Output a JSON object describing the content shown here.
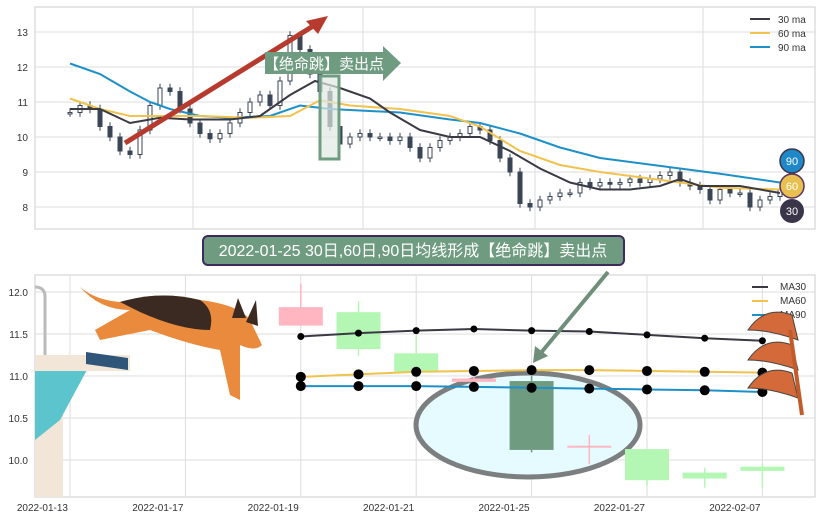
{
  "colors": {
    "ma30": "#3a3a44",
    "ma60": "#f0c24e",
    "ma90": "#1e90c8",
    "up": "#ffb6c1",
    "down": "#b4f7b4",
    "signal": "#6f9c80",
    "arrow": "#b63a2e",
    "badge90": "#1e88c8",
    "badge60": "#e8c050",
    "badge30": "#3a3548"
  },
  "chart_data": [
    {
      "type": "candlestick",
      "title": "",
      "ylim": [
        7.35,
        13.7
      ],
      "yticks": [
        8,
        9,
        10,
        11,
        12,
        13
      ],
      "grid": true,
      "legend": {
        "placement": "top-right",
        "entries": [
          "30 ma",
          "60 ma",
          "90 ma"
        ]
      },
      "close": [
        10.7,
        10.9,
        10.8,
        10.3,
        10.0,
        9.6,
        9.5,
        10.2,
        10.9,
        11.4,
        11.3,
        10.8,
        10.4,
        10.1,
        9.95,
        10.1,
        10.4,
        10.7,
        11.0,
        11.2,
        10.9,
        11.6,
        12.9,
        12.5,
        11.8,
        11.3,
        10.3,
        9.8,
        10.0,
        10.1,
        10.0,
        10.0,
        9.9,
        10.0,
        9.7,
        9.4,
        9.7,
        9.9,
        10.0,
        10.1,
        10.3,
        10.2,
        9.9,
        9.4,
        9.0,
        8.1,
        8.0,
        8.2,
        8.3,
        8.4,
        8.4,
        8.7,
        8.6,
        8.7,
        8.65,
        8.7,
        8.8,
        8.7,
        8.8,
        8.9,
        9.0,
        8.7,
        8.6,
        8.5,
        8.2,
        8.5,
        8.4,
        8.4,
        8.0,
        8.2,
        8.3,
        8.5
      ],
      "ma30": [
        [
          0,
          10.8
        ],
        [
          3,
          10.8
        ],
        [
          6,
          10.4
        ],
        [
          9,
          10.55
        ],
        [
          12,
          10.5
        ],
        [
          16,
          10.5
        ],
        [
          19,
          10.6
        ],
        [
          22,
          11.2
        ],
        [
          24.5,
          11.6
        ],
        [
          27,
          11.4
        ],
        [
          30,
          11.1
        ],
        [
          32,
          10.7
        ],
        [
          35,
          10.2
        ],
        [
          38,
          10.0
        ],
        [
          41,
          10.0
        ],
        [
          44,
          9.6
        ],
        [
          47,
          9.1
        ],
        [
          50,
          8.7
        ],
        [
          53,
          8.5
        ],
        [
          56,
          8.5
        ],
        [
          59,
          8.6
        ],
        [
          61,
          8.8
        ],
        [
          63,
          8.6
        ],
        [
          67,
          8.6
        ],
        [
          71,
          8.4
        ]
      ],
      "ma60": [
        [
          0,
          11.1
        ],
        [
          3,
          10.8
        ],
        [
          6,
          10.6
        ],
        [
          9,
          10.6
        ],
        [
          13,
          10.6
        ],
        [
          18,
          10.55
        ],
        [
          22,
          10.6
        ],
        [
          25,
          11.05
        ],
        [
          28,
          10.9
        ],
        [
          33,
          10.8
        ],
        [
          38,
          10.6
        ],
        [
          41,
          10.3
        ],
        [
          45,
          9.6
        ],
        [
          49,
          9.2
        ],
        [
          53,
          9.0
        ],
        [
          57,
          8.85
        ],
        [
          61,
          8.7
        ],
        [
          65,
          8.55
        ],
        [
          71,
          8.5
        ]
      ],
      "ma90": [
        [
          0,
          12.1
        ],
        [
          3,
          11.8
        ],
        [
          6,
          11.3
        ],
        [
          8,
          11.0
        ],
        [
          10,
          10.8
        ],
        [
          13,
          10.6
        ],
        [
          16,
          10.55
        ],
        [
          20,
          10.6
        ],
        [
          23,
          10.9
        ],
        [
          26,
          10.8
        ],
        [
          33,
          10.7
        ],
        [
          38,
          10.5
        ],
        [
          41,
          10.4
        ],
        [
          45,
          10.1
        ],
        [
          49,
          9.7
        ],
        [
          53,
          9.4
        ],
        [
          57,
          9.25
        ],
        [
          61,
          9.1
        ],
        [
          65,
          8.95
        ],
        [
          71,
          8.7
        ]
      ],
      "annotations": {
        "signal_label": "【绝命跳】卖出点",
        "badges": [
          "90",
          "60",
          "30"
        ]
      }
    },
    {
      "type": "candlestick",
      "title": "2022-01-25 30日,60日,90日均线形成【绝命跳】卖出点",
      "ylim": [
        9.57,
        12.2
      ],
      "yticks": [
        "10.0",
        "10.5",
        "11.0",
        "11.5",
        "12.0"
      ],
      "xticks": [
        {
          "i": 0,
          "label": "2022-01-13"
        },
        {
          "i": 2,
          "label": "2022-01-17"
        },
        {
          "i": 4,
          "label": "2022-01-19"
        },
        {
          "i": 6,
          "label": "2022-01-21"
        },
        {
          "i": 8,
          "label": "2022-01-25"
        },
        {
          "i": 10,
          "label": "2022-01-27"
        },
        {
          "i": 12,
          "label": "2022-02-07"
        }
      ],
      "grid": true,
      "legend": {
        "placement": "top-right",
        "entries": [
          "MA30",
          "MA60",
          "MA90"
        ]
      },
      "candles": [
        {
          "i": 4,
          "o": 11.6,
          "h": 12.1,
          "l": 11.6,
          "c": 11.82
        },
        {
          "i": 5,
          "o": 11.76,
          "h": 11.89,
          "l": 11.24,
          "c": 11.32
        },
        {
          "i": 6,
          "o": 11.27,
          "h": 11.48,
          "l": 10.97,
          "c": 11.05
        },
        {
          "i": 7,
          "o": 10.93,
          "h": 11.06,
          "l": 10.85,
          "c": 10.97
        },
        {
          "i": 8,
          "o": 10.94,
          "h": 11.0,
          "l": 10.09,
          "c": 10.12
        },
        {
          "i": 9,
          "o": 10.16,
          "h": 10.3,
          "l": 9.95,
          "c": 10.17
        },
        {
          "i": 10,
          "o": 10.13,
          "h": 10.13,
          "l": 9.69,
          "c": 9.76
        },
        {
          "i": 11,
          "o": 9.85,
          "h": 9.91,
          "l": 9.67,
          "c": 9.78
        },
        {
          "i": 12,
          "o": 9.92,
          "h": 9.96,
          "l": 9.67,
          "c": 9.87
        }
      ],
      "ma30": [
        11.47,
        11.51,
        11.54,
        11.56,
        11.54,
        11.53,
        11.49,
        11.45,
        11.42
      ],
      "ma60": [
        10.99,
        11.02,
        11.05,
        11.06,
        11.07,
        11.07,
        11.06,
        11.05,
        11.04
      ],
      "ma90": [
        10.88,
        10.88,
        10.88,
        10.87,
        10.86,
        10.85,
        10.84,
        10.83,
        10.81
      ],
      "signal_index": 8
    }
  ]
}
